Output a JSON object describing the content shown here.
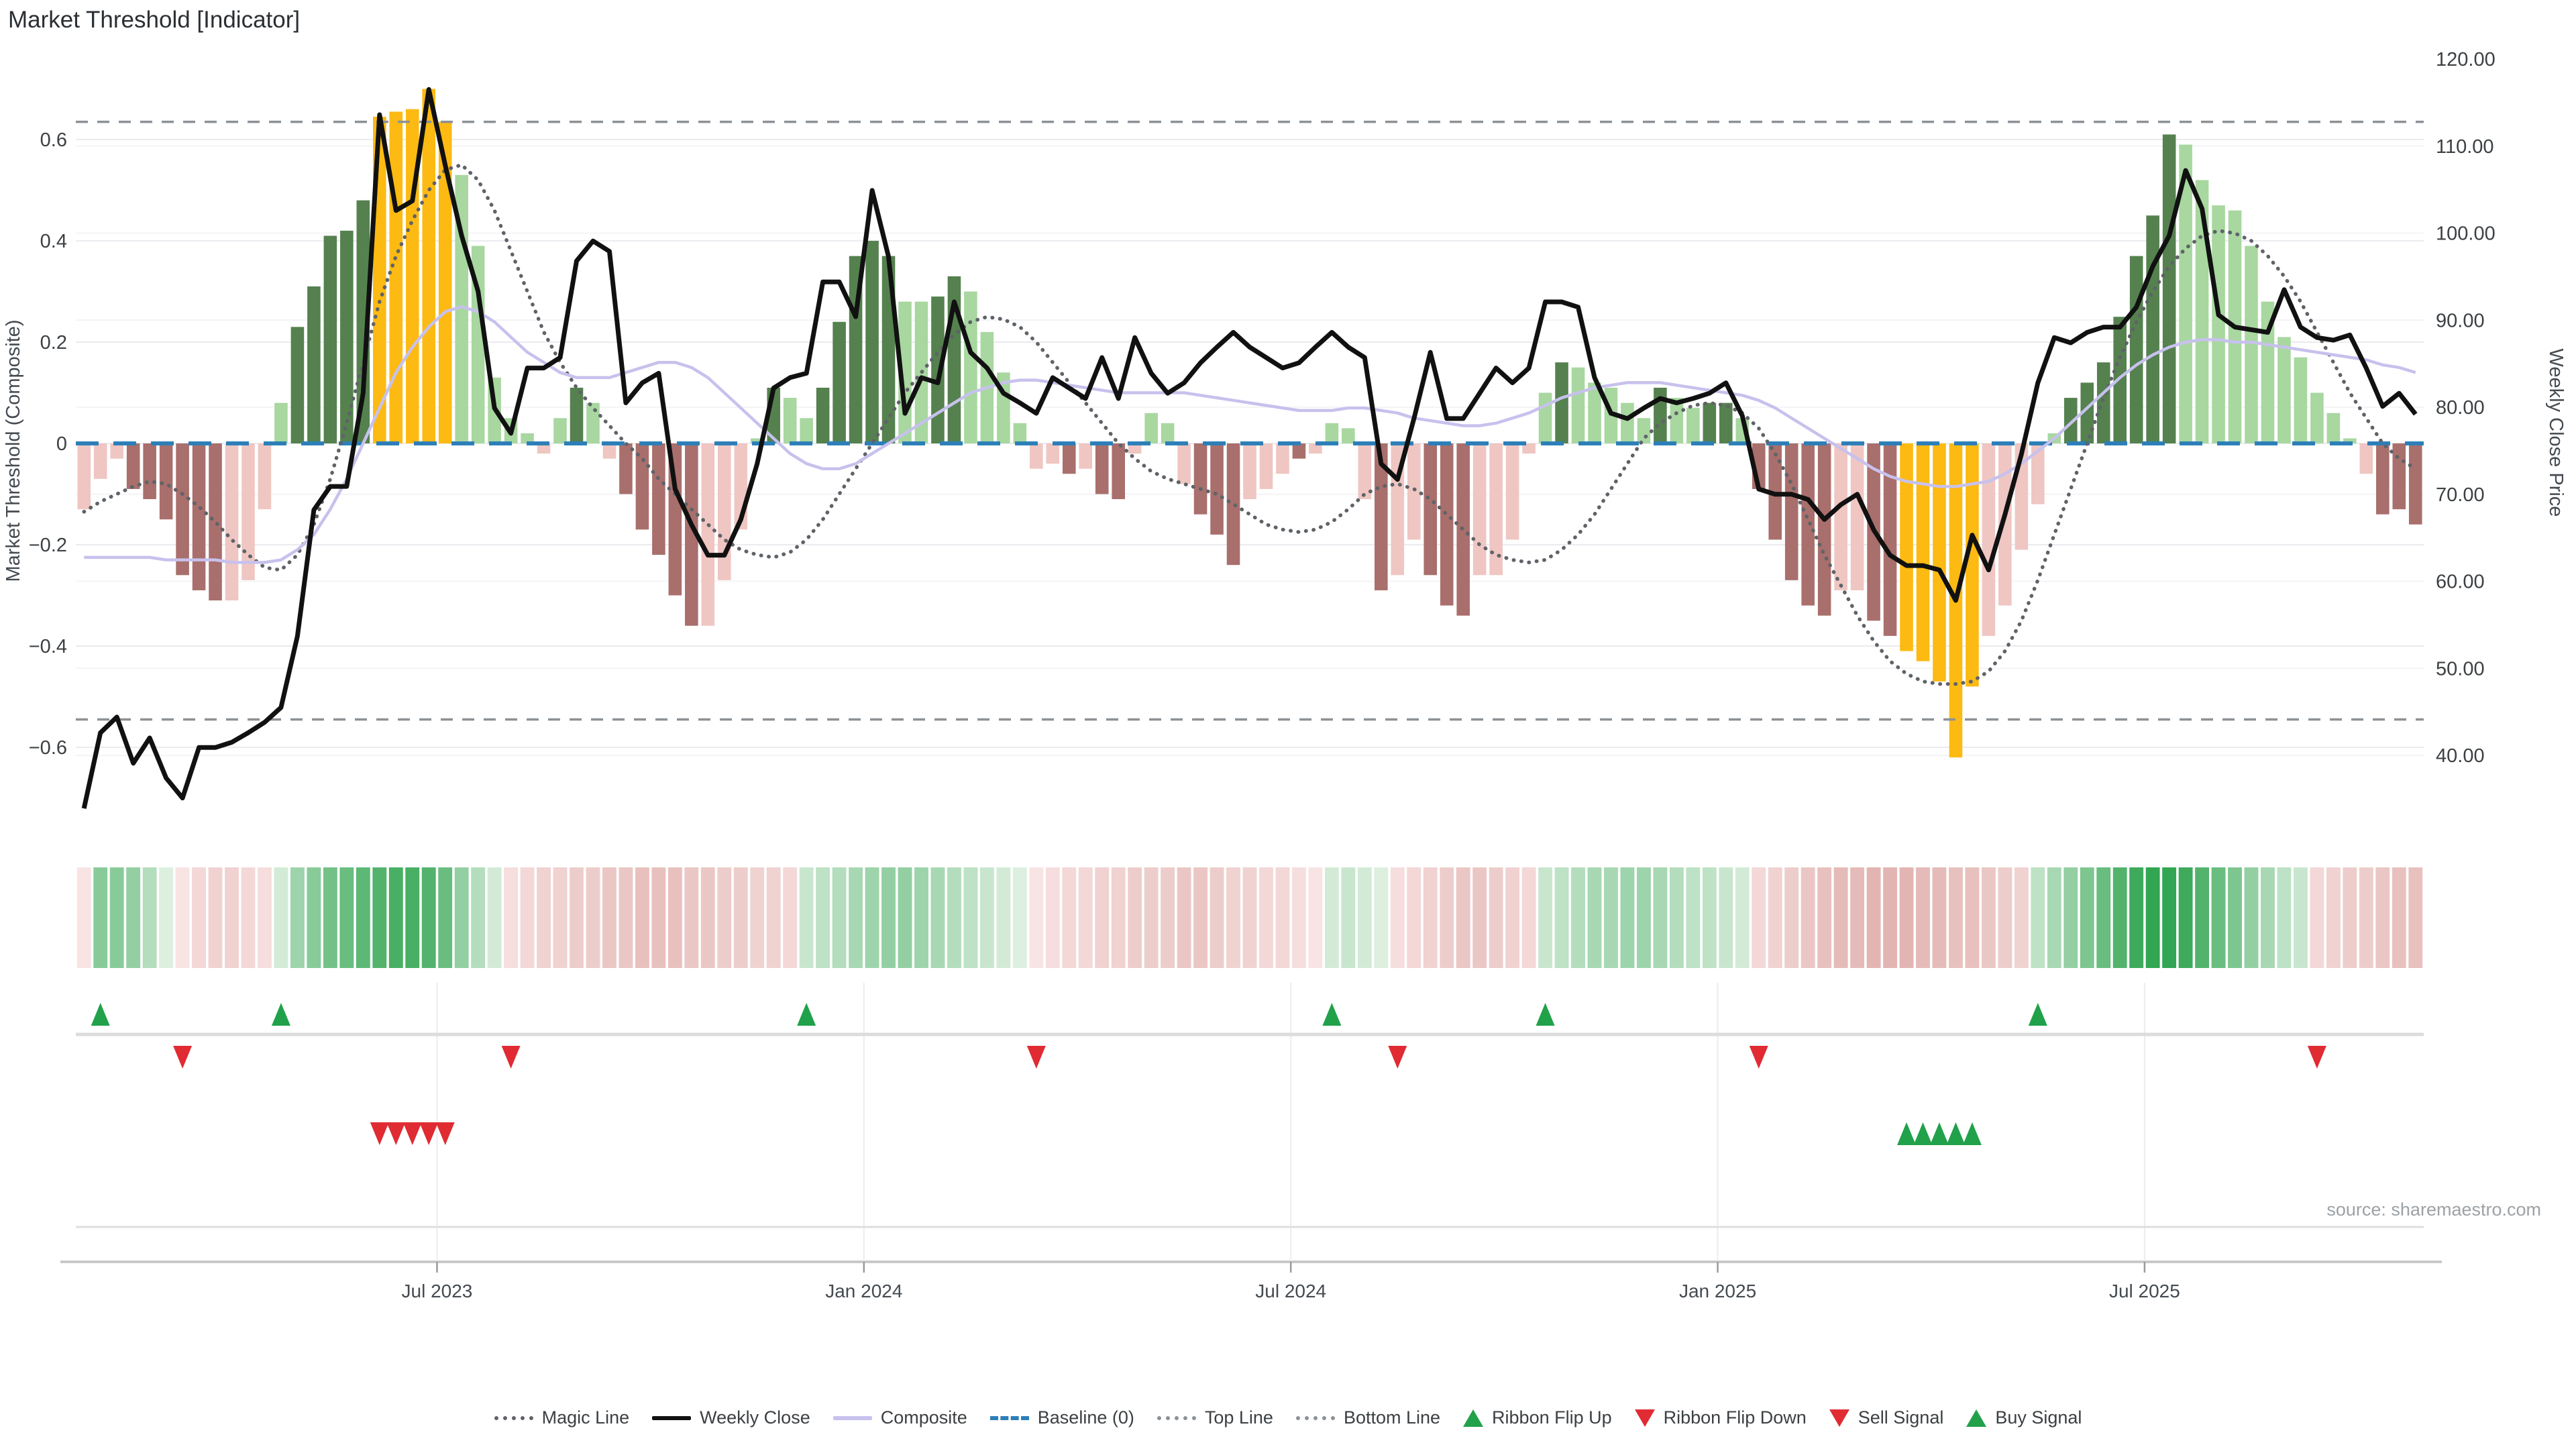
{
  "title": "Market Threshold [Indicator]",
  "source": "source: sharemaestro.com",
  "colors": {
    "bar_light_red": "#efc6c2",
    "bar_dark_red": "#a96f6c",
    "bar_light_green": "#a8d7a0",
    "bar_dark_green": "#55814f",
    "bar_yellow": "#fcba12",
    "weekly_close": "#111111",
    "composite": "#c7c1ed",
    "magic_line": "#5f6368",
    "band_lines": "#8c9196",
    "baseline": "#2d7fb8",
    "signal_green": "#21a14a",
    "signal_red": "#e02b33",
    "grid": "#ebebf0",
    "grid_right": "#f4f4f7",
    "ribbon_green_dark": "#28a14a",
    "ribbon_green_light": "#e8f4e8",
    "ribbon_red_dark": "#c9807c",
    "ribbon_red_light": "#fbeae9",
    "axis_text": "#3c4043",
    "divider": "#dcdcdc",
    "axis_line": "#c9c9c9"
  },
  "legend": {
    "items": [
      {
        "label": "Magic Line",
        "marker": "dotted",
        "color": "#5f6368"
      },
      {
        "label": "Weekly Close",
        "marker": "line",
        "color": "#111111"
      },
      {
        "label": "Composite",
        "marker": "line",
        "color": "#c7c1ed"
      },
      {
        "label": "Baseline (0)",
        "marker": "dash",
        "color": "#2d7fb8"
      },
      {
        "label": "Top Line",
        "marker": "dotted",
        "color": "#8c9196"
      },
      {
        "label": "Bottom Line",
        "marker": "dotted",
        "color": "#8c9196"
      },
      {
        "label": "Ribbon Flip Up",
        "marker": "triangle-up",
        "color": "#21a14a"
      },
      {
        "label": "Ribbon Flip Down",
        "marker": "triangle-down",
        "color": "#e02b33"
      },
      {
        "label": "Sell Signal",
        "marker": "triangle-down",
        "color": "#e02b33"
      },
      {
        "label": "Buy Signal",
        "marker": "triangle-up",
        "color": "#21a14a"
      }
    ]
  },
  "chart_data": {
    "type": "bar",
    "subtype": "bar+line indicator panel",
    "weeks": 143,
    "left_axis": {
      "label": "Market Threshold (Composite)",
      "ticks": [
        {
          "label": "0.6",
          "value": 0.6
        },
        {
          "label": "0.4",
          "value": 0.4
        },
        {
          "label": "0.2",
          "value": 0.2
        },
        {
          "label": "0",
          "value": 0
        },
        {
          "label": "−0.2",
          "value": -0.2
        },
        {
          "label": "−0.4",
          "value": -0.4
        },
        {
          "label": "−0.6",
          "value": -0.6
        }
      ],
      "range": [
        -0.78,
        0.78
      ]
    },
    "right_axis": {
      "label": "Weekly Close Price",
      "ticks": [
        {
          "label": "120.00",
          "value": 120
        },
        {
          "label": "110.00",
          "value": 110
        },
        {
          "label": "100.00",
          "value": 100
        },
        {
          "label": "90.00",
          "value": 90
        },
        {
          "label": "80.00",
          "value": 80
        },
        {
          "label": "70.00",
          "value": 70
        },
        {
          "label": "60.00",
          "value": 60
        },
        {
          "label": "50.00",
          "value": 50
        },
        {
          "label": "40.00",
          "value": 40
        }
      ],
      "range": [
        30.5,
        126.8
      ]
    },
    "x_axis": {
      "ticks": [
        {
          "label": "Jul 2023",
          "week": 22
        },
        {
          "label": "Jan 2024",
          "week": 48
        },
        {
          "label": "Jul 2024",
          "week": 74
        },
        {
          "label": "Jan 2025",
          "week": 100
        },
        {
          "label": "Jul 2025",
          "week": 126
        }
      ]
    },
    "top_line": 0.635,
    "bottom_line": -0.545,
    "baseline": 0,
    "threshold_bars": {
      "values": [
        -0.13,
        -0.07,
        -0.03,
        -0.09,
        -0.11,
        -0.15,
        -0.26,
        -0.29,
        -0.31,
        -0.31,
        -0.27,
        -0.13,
        0.08,
        0.23,
        0.31,
        0.41,
        0.42,
        0.48,
        0.645,
        0.655,
        0.66,
        0.7,
        0.635,
        0.53,
        0.39,
        0.13,
        0.05,
        0.02,
        -0.02,
        0.05,
        0.11,
        0.08,
        -0.03,
        -0.1,
        -0.17,
        -0.22,
        -0.3,
        -0.36,
        -0.36,
        -0.27,
        -0.17,
        0.01,
        0.11,
        0.09,
        0.05,
        0.11,
        0.24,
        0.37,
        0.4,
        0.37,
        0.28,
        0.28,
        0.29,
        0.33,
        0.3,
        0.22,
        0.14,
        0.04,
        -0.05,
        -0.04,
        -0.06,
        -0.05,
        -0.1,
        -0.11,
        -0.02,
        0.06,
        0.04,
        -0.08,
        -0.14,
        -0.18,
        -0.24,
        -0.11,
        -0.09,
        -0.06,
        -0.03,
        -0.02,
        0.04,
        0.03,
        -0.11,
        -0.29,
        -0.26,
        -0.19,
        -0.26,
        -0.32,
        -0.34,
        -0.26,
        -0.26,
        -0.19,
        -0.02,
        0.1,
        0.16,
        0.15,
        0.12,
        0.11,
        0.08,
        0.05,
        0.11,
        0.09,
        0.07,
        0.08,
        0.08,
        0.05,
        -0.09,
        -0.19,
        -0.27,
        -0.32,
        -0.34,
        -0.29,
        -0.29,
        -0.35,
        -0.38,
        -0.41,
        -0.43,
        -0.47,
        -0.62,
        -0.48,
        -0.38,
        -0.32,
        -0.21,
        -0.12,
        0.02,
        0.09,
        0.12,
        0.16,
        0.25,
        0.37,
        0.45,
        0.61,
        0.59,
        0.52,
        0.47,
        0.46,
        0.39,
        0.28,
        0.21,
        0.17,
        0.1,
        0.06,
        0.01,
        -0.06,
        -0.14,
        -0.13,
        -0.16
      ],
      "classes": [
        "lr",
        "lr",
        "lr",
        "dr",
        "dr",
        "dr",
        "dr",
        "dr",
        "dr",
        "lr",
        "lr",
        "lr",
        "lg",
        "dg",
        "dg",
        "dg",
        "dg",
        "dg",
        "y",
        "y",
        "y",
        "y",
        "y",
        "lg",
        "lg",
        "lg",
        "lg",
        "lg",
        "lr",
        "lg",
        "dg",
        "lg",
        "lr",
        "dr",
        "dr",
        "dr",
        "dr",
        "dr",
        "lr",
        "lr",
        "lr",
        "lg",
        "dg",
        "lg",
        "lg",
        "dg",
        "dg",
        "dg",
        "dg",
        "dg",
        "lg",
        "lg",
        "dg",
        "dg",
        "lg",
        "lg",
        "lg",
        "lg",
        "lr",
        "lr",
        "dr",
        "lr",
        "dr",
        "dr",
        "lr",
        "lg",
        "lg",
        "lr",
        "dr",
        "dr",
        "dr",
        "lr",
        "lr",
        "lr",
        "dr",
        "lr",
        "lg",
        "lg",
        "lr",
        "dr",
        "lr",
        "lr",
        "dr",
        "dr",
        "dr",
        "lr",
        "lr",
        "lr",
        "lr",
        "lg",
        "dg",
        "lg",
        "lg",
        "lg",
        "lg",
        "lg",
        "dg",
        "lg",
        "lg",
        "dg",
        "dg",
        "lg",
        "dr",
        "dr",
        "dr",
        "dr",
        "dr",
        "lr",
        "lr",
        "dr",
        "dr",
        "y",
        "y",
        "y",
        "y",
        "y",
        "lr",
        "lr",
        "lr",
        "lr",
        "lg",
        "dg",
        "dg",
        "dg",
        "dg",
        "dg",
        "dg",
        "dg",
        "lg",
        "lg",
        "lg",
        "lg",
        "lg",
        "lg",
        "lg",
        "lg",
        "lg",
        "lg",
        "lg",
        "lr",
        "dr",
        "dr",
        "dr"
      ]
    },
    "weekly_close": [
      33.9,
      42.6,
      44.4,
      39.1,
      42.0,
      37.4,
      35.1,
      40.9,
      40.9,
      41.5,
      42.6,
      43.8,
      45.5,
      53.7,
      68.2,
      70.9,
      70.9,
      81.6,
      113.6,
      102.6,
      103.7,
      116.5,
      107.8,
      99.7,
      93.3,
      79.9,
      77.0,
      84.5,
      84.5,
      85.7,
      96.8,
      99.1,
      97.9,
      80.5,
      82.8,
      83.9,
      70.6,
      66.5,
      63.0,
      63.0,
      67.1,
      73.5,
      82.2,
      83.4,
      83.9,
      94.4,
      94.4,
      90.4,
      104.9,
      97.3,
      79.3,
      83.4,
      82.8,
      92.1,
      86.3,
      84.5,
      81.6,
      80.5,
      79.3,
      83.4,
      82.2,
      81.0,
      85.7,
      81.0,
      88.0,
      83.9,
      81.6,
      82.8,
      85.1,
      86.9,
      88.6,
      86.9,
      85.7,
      84.5,
      85.1,
      86.9,
      88.6,
      86.9,
      85.7,
      73.5,
      71.7,
      78.7,
      86.3,
      78.7,
      78.7,
      81.6,
      84.5,
      82.8,
      84.5,
      92.1,
      92.1,
      91.5,
      83.4,
      79.3,
      78.7,
      79.9,
      81.0,
      80.5,
      81.0,
      81.6,
      82.8,
      79.0,
      70.6,
      70.0,
      70.0,
      69.4,
      67.1,
      68.8,
      70.0,
      65.9,
      63.0,
      61.8,
      61.8,
      61.3,
      57.8,
      65.3,
      61.3,
      67.7,
      74.6,
      82.8,
      88.0,
      87.4,
      88.6,
      89.2,
      89.2,
      91.5,
      96.2,
      99.7,
      107.2,
      102.8,
      90.6,
      89.2,
      88.9,
      88.6,
      93.5,
      89.2,
      88.0,
      87.7,
      88.3,
      84.5,
      80.1,
      81.6,
      79.2
    ],
    "composite": [
      -0.225,
      -0.225,
      -0.225,
      -0.225,
      -0.225,
      -0.23,
      -0.23,
      -0.23,
      -0.23,
      -0.235,
      -0.235,
      -0.235,
      -0.23,
      -0.21,
      -0.18,
      -0.13,
      -0.07,
      0.0,
      0.07,
      0.14,
      0.19,
      0.23,
      0.26,
      0.27,
      0.26,
      0.24,
      0.21,
      0.18,
      0.16,
      0.14,
      0.13,
      0.13,
      0.13,
      0.14,
      0.15,
      0.16,
      0.16,
      0.15,
      0.13,
      0.1,
      0.07,
      0.04,
      0.01,
      -0.02,
      -0.04,
      -0.05,
      -0.05,
      -0.04,
      -0.02,
      0.0,
      0.02,
      0.04,
      0.06,
      0.08,
      0.1,
      0.11,
      0.12,
      0.125,
      0.125,
      0.12,
      0.115,
      0.11,
      0.105,
      0.1,
      0.1,
      0.1,
      0.1,
      0.1,
      0.095,
      0.09,
      0.085,
      0.08,
      0.075,
      0.07,
      0.065,
      0.065,
      0.065,
      0.07,
      0.07,
      0.065,
      0.06,
      0.05,
      0.045,
      0.04,
      0.035,
      0.035,
      0.04,
      0.05,
      0.06,
      0.075,
      0.09,
      0.1,
      0.11,
      0.115,
      0.12,
      0.12,
      0.12,
      0.115,
      0.11,
      0.105,
      0.1,
      0.095,
      0.085,
      0.07,
      0.05,
      0.03,
      0.01,
      -0.01,
      -0.03,
      -0.05,
      -0.065,
      -0.075,
      -0.08,
      -0.085,
      -0.085,
      -0.08,
      -0.075,
      -0.06,
      -0.04,
      -0.015,
      0.01,
      0.04,
      0.07,
      0.1,
      0.13,
      0.155,
      0.175,
      0.19,
      0.2,
      0.205,
      0.205,
      0.2,
      0.2,
      0.195,
      0.19,
      0.185,
      0.18,
      0.175,
      0.17,
      0.165,
      0.155,
      0.15,
      0.14
    ],
    "magic_line": [
      -0.135,
      -0.115,
      -0.1,
      -0.085,
      -0.075,
      -0.08,
      -0.1,
      -0.125,
      -0.155,
      -0.19,
      -0.22,
      -0.245,
      -0.25,
      -0.22,
      -0.16,
      -0.07,
      0.04,
      0.16,
      0.28,
      0.37,
      0.44,
      0.5,
      0.54,
      0.55,
      0.52,
      0.46,
      0.38,
      0.3,
      0.22,
      0.16,
      0.11,
      0.07,
      0.035,
      0.0,
      -0.03,
      -0.07,
      -0.1,
      -0.13,
      -0.16,
      -0.19,
      -0.21,
      -0.22,
      -0.225,
      -0.215,
      -0.19,
      -0.15,
      -0.1,
      -0.05,
      0.0,
      0.05,
      0.1,
      0.14,
      0.18,
      0.215,
      0.24,
      0.25,
      0.245,
      0.23,
      0.2,
      0.16,
      0.12,
      0.08,
      0.04,
      0.0,
      -0.03,
      -0.055,
      -0.07,
      -0.08,
      -0.09,
      -0.1,
      -0.12,
      -0.14,
      -0.16,
      -0.17,
      -0.175,
      -0.17,
      -0.155,
      -0.13,
      -0.1,
      -0.085,
      -0.08,
      -0.09,
      -0.11,
      -0.14,
      -0.17,
      -0.2,
      -0.22,
      -0.23,
      -0.235,
      -0.23,
      -0.21,
      -0.18,
      -0.14,
      -0.09,
      -0.04,
      0.01,
      0.04,
      0.06,
      0.075,
      0.08,
      0.075,
      0.06,
      0.03,
      -0.02,
      -0.08,
      -0.15,
      -0.22,
      -0.28,
      -0.34,
      -0.39,
      -0.43,
      -0.455,
      -0.47,
      -0.475,
      -0.475,
      -0.47,
      -0.45,
      -0.41,
      -0.35,
      -0.27,
      -0.18,
      -0.09,
      0.0,
      0.09,
      0.17,
      0.24,
      0.3,
      0.35,
      0.385,
      0.41,
      0.42,
      0.415,
      0.4,
      0.37,
      0.33,
      0.28,
      0.22,
      0.16,
      0.1,
      0.05,
      0.0,
      -0.03,
      -0.05
    ],
    "ribbon": [
      -0.15,
      0.55,
      0.55,
      0.5,
      0.35,
      0.15,
      -0.15,
      -0.25,
      -0.3,
      -0.3,
      -0.25,
      -0.2,
      0.2,
      0.45,
      0.55,
      0.65,
      0.7,
      0.75,
      0.8,
      0.85,
      0.85,
      0.8,
      0.7,
      0.5,
      0.35,
      0.2,
      -0.2,
      -0.25,
      -0.3,
      -0.3,
      -0.35,
      -0.35,
      -0.4,
      -0.4,
      -0.45,
      -0.45,
      -0.45,
      -0.4,
      -0.4,
      -0.35,
      -0.35,
      -0.3,
      -0.3,
      -0.25,
      0.25,
      0.3,
      0.35,
      0.4,
      0.45,
      0.5,
      0.5,
      0.45,
      0.4,
      0.35,
      0.3,
      0.25,
      0.2,
      0.15,
      -0.15,
      -0.2,
      -0.25,
      -0.25,
      -0.3,
      -0.3,
      -0.35,
      -0.35,
      -0.35,
      -0.4,
      -0.4,
      -0.35,
      -0.3,
      -0.3,
      -0.25,
      -0.25,
      -0.2,
      -0.15,
      0.2,
      0.25,
      0.2,
      0.15,
      -0.2,
      -0.25,
      -0.3,
      -0.35,
      -0.4,
      -0.4,
      -0.35,
      -0.3,
      -0.25,
      0.25,
      0.3,
      0.35,
      0.4,
      0.4,
      0.45,
      0.45,
      0.4,
      0.35,
      0.3,
      0.3,
      0.25,
      0.2,
      -0.25,
      -0.3,
      -0.35,
      -0.4,
      -0.45,
      -0.5,
      -0.5,
      -0.55,
      -0.55,
      -0.55,
      -0.5,
      -0.5,
      -0.45,
      -0.45,
      -0.4,
      -0.35,
      -0.3,
      0.3,
      0.4,
      0.5,
      0.6,
      0.7,
      0.8,
      0.9,
      0.95,
      0.95,
      0.9,
      0.8,
      0.7,
      0.6,
      0.5,
      0.4,
      0.3,
      0.25,
      -0.25,
      -0.3,
      -0.35,
      -0.35,
      -0.4,
      -0.45,
      -0.45
    ],
    "signals": {
      "ribbon_flip_up_weeks": [
        1,
        12,
        44,
        76,
        89,
        119
      ],
      "ribbon_flip_down_weeks": [
        6,
        26,
        58,
        80,
        102,
        136
      ],
      "sell_signal_weeks": [
        18,
        19,
        20,
        21,
        22
      ],
      "buy_signal_weeks": [
        111,
        112,
        113,
        114,
        115
      ]
    }
  }
}
